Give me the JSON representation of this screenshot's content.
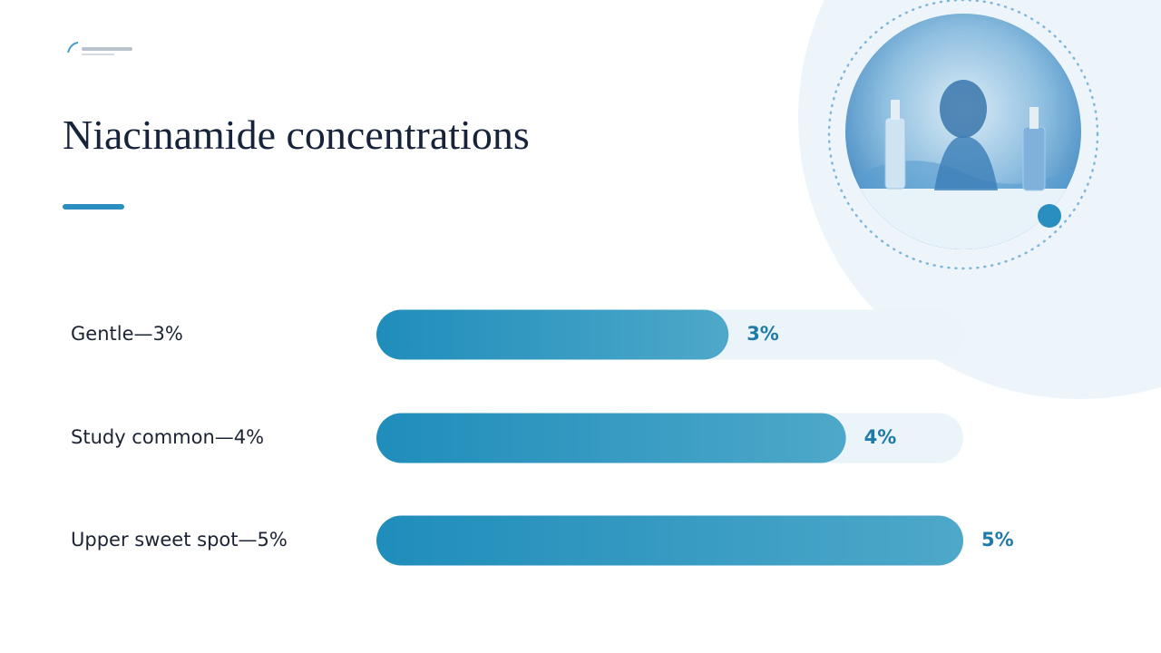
{
  "chart_data": {
    "type": "bar",
    "orientation": "horizontal",
    "title": "Niacinamide concentrations",
    "categories": [
      "Gentle—3%",
      "Study common—4%",
      "Upper sweet spot—5%"
    ],
    "values": [
      3,
      4,
      5
    ],
    "value_labels": [
      "3%",
      "4%",
      "5%"
    ],
    "xlim": [
      0,
      5
    ],
    "color": "#1f8dbb"
  }
}
